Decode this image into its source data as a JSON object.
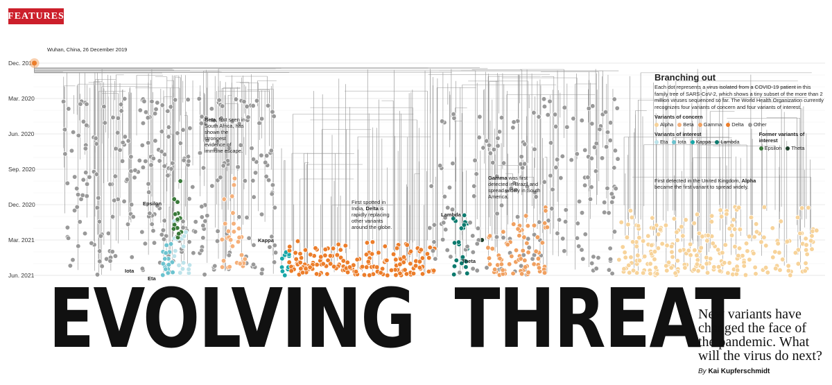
{
  "section_label": "FEATURES",
  "headline_words": [
    "EVOLVING",
    "THREAT"
  ],
  "deck": "New variants have changed the face of the pandemic. What will the virus do next?",
  "byline": {
    "prefix": "By",
    "author": "Kai Kupferschmidt"
  },
  "root_label": "Wuhan, China, 26 December 2019",
  "legend": {
    "title": "Branching out",
    "description": "Each dot represents a virus isolated from a COVID-19 patient in this family tree of SARS-CoV-2, which shows a tiny subset of the more than 2 million viruses sequenced so far. The World Health Organization currently recognizes four variants of concern and four variants of interest.",
    "concern_heading": "Variants of concern",
    "concern": [
      {
        "name": "Alpha",
        "color": "#f7d39a"
      },
      {
        "name": "Beta",
        "color": "#f5b07a"
      },
      {
        "name": "Gamma",
        "color": "#f0a060"
      },
      {
        "name": "Delta",
        "color": "#ec7d2a"
      },
      {
        "name": "Other",
        "color": "#999999"
      }
    ],
    "interest_heading": "Variants of interest",
    "interest": [
      {
        "name": "Eta",
        "color": "#bde3ea"
      },
      {
        "name": "Iota",
        "color": "#6cc3cf"
      },
      {
        "name": "Kappa",
        "color": "#18a7a8"
      },
      {
        "name": "Lambda",
        "color": "#0d7a6e"
      }
    ],
    "former_heading": "Former variants of interest",
    "former": [
      {
        "name": "Epsilon",
        "color": "#3a7a3a"
      },
      {
        "name": "Theta",
        "color": "#1e3f2a"
      }
    ]
  },
  "annotations": {
    "beta": {
      "name": "Beta",
      "text": ", first seen in South Africa, has shown the strongest evidence of immune escape."
    },
    "delta": {
      "pre": "First spotted in India, ",
      "name": "Delta",
      "post": " is rapidly replacing other variants around the globe."
    },
    "gamma": {
      "name": "Gamma",
      "text": " was first detected in Brazil and spread widely in South America."
    },
    "alpha": {
      "pre": "First detected in the United Kingdom, ",
      "name": "Alpha",
      "post": " became the first variant to spread widely."
    }
  },
  "variant_labels": [
    "Epsilon",
    "Iota",
    "Eta",
    "Kappa",
    "Lambda",
    "Theta"
  ],
  "chart_data": {
    "type": "scatter",
    "description_axis": "time of sample collection",
    "y_ticks": [
      "Dec. 2019",
      "Mar. 2020",
      "Jun. 2020",
      "Sep. 2020",
      "Dec. 2020",
      "Mar. 2021",
      "Jun. 2021"
    ],
    "ylim": [
      "Dec. 2019",
      "Jun. 2021"
    ],
    "clades": [
      {
        "variant": "Other",
        "color": "#999999",
        "x_range": [
          0.04,
          0.2
        ],
        "y_range": [
          "Mar. 2020",
          "Jun. 2021"
        ],
        "count": 180
      },
      {
        "variant": "Other",
        "color": "#999999",
        "x_range": [
          0.2,
          0.31
        ],
        "y_range": [
          "Mar. 2020",
          "Jun. 2021"
        ],
        "count": 110
      },
      {
        "variant": "Iota",
        "color": "#6cc3cf",
        "x_range": [
          0.165,
          0.18
        ],
        "y_range": [
          "Mar. 2021",
          "Jun. 2021"
        ],
        "count": 18
      },
      {
        "variant": "Eta",
        "color": "#bde3ea",
        "x_range": [
          0.18,
          0.2
        ],
        "y_range": [
          "Dec. 2020",
          "Jun. 2021"
        ],
        "count": 16
      },
      {
        "variant": "Epsilon",
        "color": "#3a7a3a",
        "x_range": [
          0.178,
          0.19
        ],
        "y_range": [
          "Sep. 2020",
          "Mar. 2021"
        ],
        "count": 14
      },
      {
        "variant": "Beta",
        "color": "#f5b07a",
        "x_range": [
          0.24,
          0.27
        ],
        "y_range": [
          "Sep. 2020",
          "Jun. 2021"
        ],
        "count": 30
      },
      {
        "variant": "Kappa",
        "color": "#18a7a8",
        "x_range": [
          0.315,
          0.325
        ],
        "y_range": [
          "Mar. 2021",
          "Jun. 2021"
        ],
        "count": 10
      },
      {
        "variant": "Delta",
        "color": "#ec7d2a",
        "x_range": [
          0.325,
          0.51
        ],
        "y_range": [
          "Mar. 2021",
          "Jun. 2021"
        ],
        "count": 170
      },
      {
        "variant": "Lambda",
        "color": "#0d7a6e",
        "x_range": [
          0.53,
          0.55
        ],
        "y_range": [
          "Dec. 2020",
          "Jun. 2021"
        ],
        "count": 22
      },
      {
        "variant": "Theta",
        "color": "#1e3f2a",
        "x_range": [
          0.565,
          0.568
        ],
        "y_range": [
          "Mar. 2021",
          "Mar. 2021"
        ],
        "count": 1
      },
      {
        "variant": "Other",
        "color": "#999999",
        "x_range": [
          0.5,
          0.74
        ],
        "y_range": [
          "Mar. 2020",
          "Jun. 2021"
        ],
        "count": 180
      },
      {
        "variant": "Gamma",
        "color": "#f0a060",
        "x_range": [
          0.575,
          0.65
        ],
        "y_range": [
          "Dec. 2020",
          "Jun. 2021"
        ],
        "count": 70
      },
      {
        "variant": "Alpha",
        "color": "#f7d39a",
        "x_range": [
          0.74,
          0.99
        ],
        "y_range": [
          "Dec. 2020",
          "Jun. 2021"
        ],
        "count": 230
      }
    ]
  }
}
